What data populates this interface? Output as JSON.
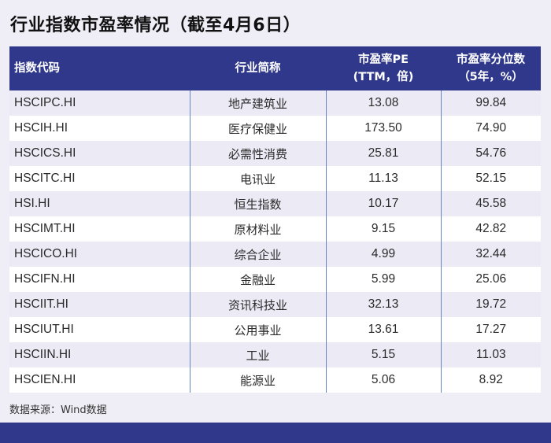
{
  "title": "行业指数市盈率情况（截至4月6日）",
  "table": {
    "headers": {
      "code": "指数代码",
      "name": "行业简称",
      "pe_line1": "市盈率PE",
      "pe_line2": "(TTM，倍)",
      "pct_line1": "市盈率分位数",
      "pct_line2": "（5年，%）"
    },
    "rows": [
      {
        "code": "HSCIPC.HI",
        "name": "地产建筑业",
        "pe": "13.08",
        "pct": "99.84"
      },
      {
        "code": "HSCIH.HI",
        "name": "医疗保健业",
        "pe": "173.50",
        "pct": "74.90"
      },
      {
        "code": "HSCICS.HI",
        "name": "必需性消费",
        "pe": "25.81",
        "pct": "54.76"
      },
      {
        "code": "HSCITC.HI",
        "name": "电讯业",
        "pe": "11.13",
        "pct": "52.15"
      },
      {
        "code": "HSI.HI",
        "name": "恒生指数",
        "pe": "10.17",
        "pct": "45.58"
      },
      {
        "code": "HSCIMT.HI",
        "name": "原材料业",
        "pe": "9.15",
        "pct": "42.82"
      },
      {
        "code": "HSCICO.HI",
        "name": "综合企业",
        "pe": "4.99",
        "pct": "32.44"
      },
      {
        "code": "HSCIFN.HI",
        "name": "金融业",
        "pe": "5.99",
        "pct": "25.06"
      },
      {
        "code": "HSCIIT.HI",
        "name": "资讯科技业",
        "pe": "32.13",
        "pct": "19.72"
      },
      {
        "code": "HSCIUT.HI",
        "name": "公用事业",
        "pe": "13.61",
        "pct": "17.27"
      },
      {
        "code": "HSCIIN.HI",
        "name": "工业",
        "pe": "5.15",
        "pct": "11.03"
      },
      {
        "code": "HSCIEN.HI",
        "name": "能源业",
        "pe": "5.06",
        "pct": "8.92"
      }
    ]
  },
  "source": "数据来源：Wind数据",
  "colors": {
    "header_bg": "#2f388a",
    "stripe": "#ebeaf5",
    "divider": "#6b82c4",
    "page_bg": "#efeef6"
  }
}
